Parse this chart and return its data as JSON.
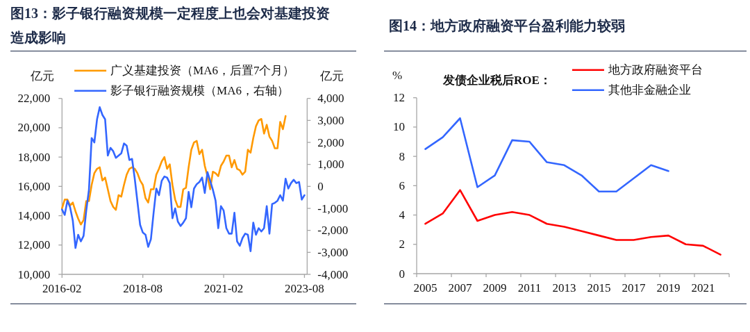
{
  "chart_data": [
    {
      "type": "line",
      "title": "图13：影子银行融资规模一定程度上也会对基建投资造成影响",
      "ylabel": "亿元",
      "y2label": "亿元",
      "legend": "top",
      "xlim": [
        "2016-02",
        "2023-09"
      ],
      "xticks": [
        "2016-02",
        "2018-08",
        "2021-02",
        "2023-08"
      ],
      "ylim": [
        10000,
        22000
      ],
      "yticks": [
        {
          "value": 10000,
          "label": "10,000"
        },
        {
          "value": 12000,
          "label": "12,000"
        },
        {
          "value": 14000,
          "label": "14,000"
        },
        {
          "value": 16000,
          "label": "16,000"
        },
        {
          "value": 18000,
          "label": "18,000"
        },
        {
          "value": 20000,
          "label": "20,000"
        },
        {
          "value": 22000,
          "label": "22,000"
        }
      ],
      "y2lim": [
        -4000,
        4000
      ],
      "y2ticks": [
        {
          "value": -4000,
          "label": "-4,000"
        },
        {
          "value": -3000,
          "label": "-3,000"
        },
        {
          "value": -2000,
          "label": "-2,000"
        },
        {
          "value": -1000,
          "label": "-1,000"
        },
        0,
        {
          "value": 1000,
          "label": "1,000"
        },
        {
          "value": 2000,
          "label": "2,000"
        },
        {
          "value": 3000,
          "label": "3,000"
        },
        {
          "value": 4000,
          "label": "4,000"
        }
      ],
      "x": [
        "2016-02",
        "2016-03",
        "2016-04",
        "2016-05",
        "2016-06",
        "2016-07",
        "2016-08",
        "2016-09",
        "2016-10",
        "2016-11",
        "2016-12",
        "2017-01",
        "2017-02",
        "2017-03",
        "2017-04",
        "2017-05",
        "2017-06",
        "2017-07",
        "2017-08",
        "2017-09",
        "2017-10",
        "2017-11",
        "2017-12",
        "2018-01",
        "2018-02",
        "2018-03",
        "2018-04",
        "2018-05",
        "2018-06",
        "2018-07",
        "2018-08",
        "2018-09",
        "2018-10",
        "2018-11",
        "2018-12",
        "2019-01",
        "2019-02",
        "2019-03",
        "2019-04",
        "2019-05",
        "2019-06",
        "2019-07",
        "2019-08",
        "2019-09",
        "2019-10",
        "2019-11",
        "2019-12",
        "2020-01",
        "2020-02",
        "2020-03",
        "2020-04",
        "2020-05",
        "2020-06",
        "2020-07",
        "2020-08",
        "2020-09",
        "2020-10",
        "2020-11",
        "2020-12",
        "2021-01",
        "2021-02",
        "2021-03",
        "2021-04",
        "2021-05",
        "2021-06",
        "2021-07",
        "2021-08",
        "2021-09",
        "2021-10",
        "2021-11",
        "2021-12",
        "2022-01",
        "2022-02",
        "2022-03",
        "2022-04",
        "2022-05",
        "2022-06",
        "2022-07",
        "2022-08",
        "2022-09",
        "2022-10",
        "2022-11",
        "2022-12",
        "2023-01",
        "2023-02",
        "2023-03",
        "2023-04",
        "2023-05",
        "2023-06",
        "2023-07",
        "2023-08"
      ],
      "series": [
        {
          "name": "广义基建投资（MA6，后置7个月）",
          "color": "#ff9900",
          "values": [
            14500,
            15100,
            15100,
            14700,
            14900,
            14300,
            13800,
            13400,
            13700,
            15000,
            15000,
            16100,
            16900,
            17200,
            17300,
            16400,
            16600,
            15800,
            15000,
            14600,
            14400,
            15400,
            15300,
            16100,
            16800,
            17200,
            17300,
            17200,
            16900,
            16400,
            16100,
            15200,
            14900,
            15800,
            15800,
            16800,
            17200,
            17700,
            18000,
            17200,
            17500,
            16100,
            15100,
            14600,
            14600,
            15800,
            15900,
            17300,
            18500,
            19000,
            19100,
            18200,
            18500,
            17400,
            16700,
            15800,
            17000,
            16900,
            16700,
            17400,
            17700,
            18100,
            18100,
            17300,
            17800,
            17200,
            17100,
            16800,
            17000,
            18500,
            18300,
            19300,
            20100,
            20500,
            20600,
            19600,
            20200,
            19400,
            19100,
            18600,
            18600,
            20400,
            19900,
            20800,
            null,
            null,
            null,
            null,
            null,
            null,
            null
          ]
        },
        {
          "name": "影子银行融资规模（MA6，右轴）",
          "color": "#3366ff",
          "axis": "y2",
          "values": [
            -1050,
            -1300,
            -650,
            -950,
            -1550,
            -2800,
            -2200,
            -2500,
            -2250,
            -1100,
            -150,
            2200,
            2000,
            3050,
            3600,
            3250,
            3050,
            1400,
            1750,
            1600,
            1300,
            1400,
            1500,
            1950,
            1850,
            1200,
            1250,
            350,
            -700,
            -1750,
            -2100,
            -2200,
            -2750,
            -2400,
            -1200,
            -100,
            -400,
            250,
            450,
            400,
            150,
            -1450,
            -1000,
            -1600,
            -1800,
            -1650,
            -1450,
            -250,
            -950,
            -100,
            100,
            200,
            400,
            -300,
            650,
            250,
            -150,
            -650,
            -1900,
            -900,
            -1100,
            -1900,
            -2150,
            -2150,
            -1200,
            -2500,
            -2700,
            -2350,
            -2150,
            -2200,
            -2950,
            -1650,
            -2200,
            -1900,
            -2050,
            -1900,
            -900,
            -2150,
            -800,
            -750,
            -650,
            -400,
            -650,
            350,
            -100,
            150,
            300,
            150,
            200,
            -600,
            -400
          ]
        }
      ]
    },
    {
      "type": "line",
      "title": "图14：地方政府融资平台盈利能力较弱",
      "ylabel": "%",
      "legend_title": "发债企业税后ROE：",
      "legend": "top",
      "categories": [
        "2005",
        null,
        "2007",
        null,
        "2009",
        null,
        "2011",
        null,
        "2013",
        null,
        "2015",
        null,
        "2017",
        null,
        "2019",
        null,
        "2021",
        null
      ],
      "ylim": [
        0,
        12
      ],
      "yticks": [
        0,
        2,
        4,
        6,
        8,
        10,
        12
      ],
      "series": [
        {
          "name": "地方政府融资平台",
          "color": "#ff0000",
          "values": [
            3.4,
            4.1,
            5.7,
            3.6,
            4.0,
            4.2,
            4.0,
            3.4,
            3.2,
            2.9,
            2.6,
            2.3,
            2.3,
            2.5,
            2.6,
            2.0,
            1.9,
            1.3
          ]
        },
        {
          "name": "其他非金融企业",
          "color": "#3366ff",
          "values": [
            8.5,
            9.3,
            10.6,
            5.9,
            6.7,
            9.1,
            9.0,
            7.6,
            7.4,
            6.7,
            5.6,
            5.6,
            6.5,
            7.4,
            7.0,
            null,
            null,
            null
          ]
        }
      ]
    }
  ]
}
